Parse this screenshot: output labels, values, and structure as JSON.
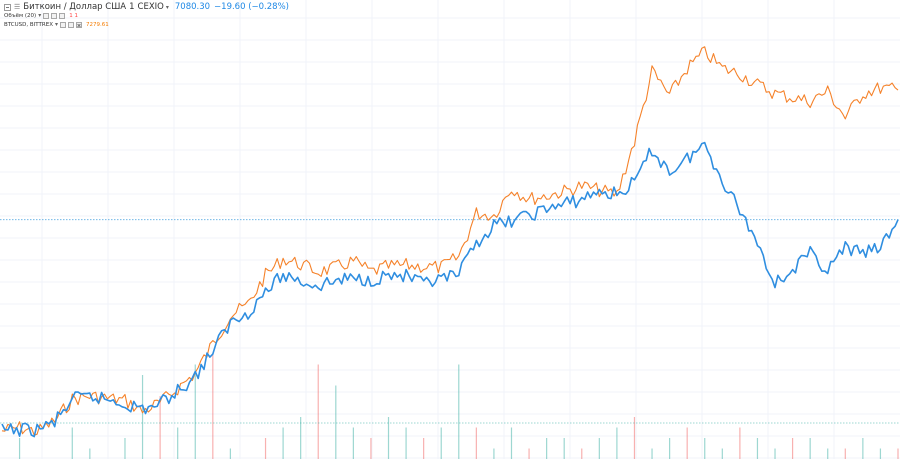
{
  "legend": {
    "symbol_title": "Биткоин / Доллар США",
    "interval": "1",
    "exchange": "CEXIO",
    "price": "7080.30",
    "change": "−19.60 (−0.28%)",
    "volume_label": "Объём (20)",
    "volume_values": "1  1",
    "compare_symbol": "BTCUSD, BITTREX",
    "compare_value": "7279.61"
  },
  "colors": {
    "main_line": "#2f8ee0",
    "compare_line": "#f5822a",
    "grid": "#f0f3fa",
    "volume_up": "#26a69a",
    "volume_down": "#ef5350",
    "price_marker": "#4aa3df"
  },
  "icons": [
    "collapse-icon",
    "menu-icon",
    "dropdown-icon",
    "settings-icon",
    "hide-icon",
    "close-icon"
  ],
  "chart_data": {
    "type": "line",
    "grid": true,
    "y_scale": "relative",
    "series": [
      {
        "name": "BTCUSD, BITTREX",
        "color": "#f5822a",
        "values": [
          12,
          15,
          11,
          21,
          41,
          44,
          42,
          40,
          30,
          38,
          51,
          65,
          92,
          118,
          128,
          155,
          170,
          165,
          158,
          162,
          168,
          158,
          163,
          164,
          163,
          162,
          172,
          212,
          210,
          235,
          225,
          228,
          232,
          237,
          233,
          229,
          278,
          342,
          320,
          345,
          360,
          345,
          340,
          330,
          322,
          318,
          315,
          324,
          300,
          322,
          327,
          325
        ]
      },
      {
        "name": "Биткоин / Доллар США",
        "color": "#2f8ee0",
        "values": [
          12,
          13,
          13,
          20,
          41,
          43,
          41,
          37,
          32,
          37,
          49,
          62,
          86,
          111,
          121,
          140,
          155,
          150,
          145,
          150,
          152,
          151,
          155,
          154,
          146,
          151,
          155,
          185,
          200,
          205,
          210,
          216,
          220,
          225,
          232,
          229,
          240,
          270,
          250,
          262,
          275,
          243,
          215,
          185,
          148,
          160,
          175,
          160,
          180,
          175,
          180,
          206
        ]
      }
    ],
    "volume_values": [
      0,
      2,
      0,
      0,
      3,
      1,
      0,
      2,
      8,
      6,
      3,
      9,
      10,
      1,
      0,
      2,
      3,
      4,
      9,
      7,
      3,
      2,
      4,
      3,
      2,
      3,
      9,
      3,
      1,
      3,
      1,
      2,
      2,
      1,
      2,
      3,
      4,
      1,
      2,
      3,
      2,
      1,
      3,
      2,
      1,
      2,
      2,
      1,
      1,
      2,
      1,
      1
    ]
  }
}
